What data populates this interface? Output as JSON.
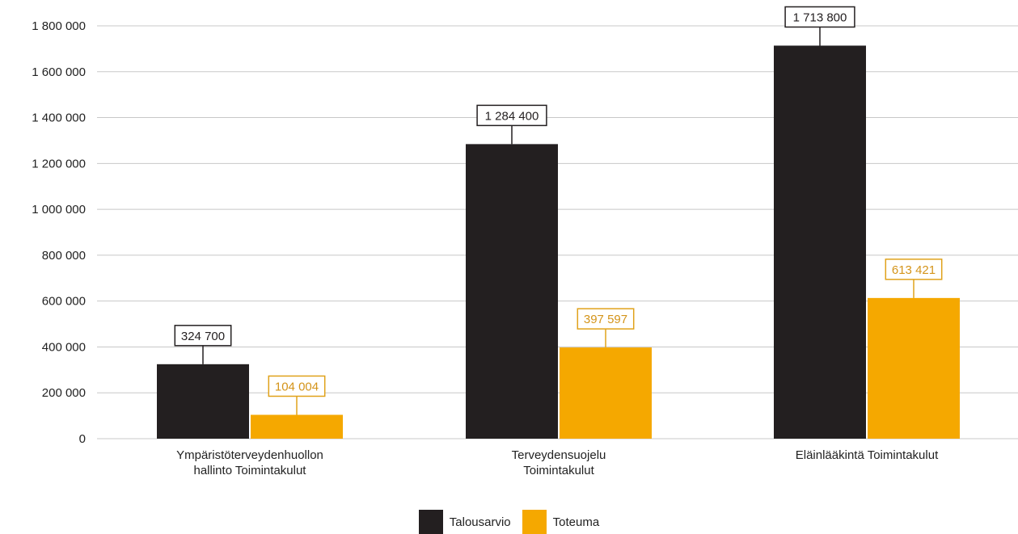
{
  "chart_data": {
    "type": "bar",
    "categories": [
      [
        "Ympäristöterveydenhuollon",
        "hallinto Toimintakulut"
      ],
      [
        "Terveydensuojelu",
        "Toimintakulut"
      ],
      [
        "Eläinlääkintä Toimintakulut"
      ]
    ],
    "series": [
      {
        "name": "Talousarvio",
        "color": "#231f20",
        "values": [
          324700,
          1284400,
          1713800
        ],
        "labels": [
          "324 700",
          "1 284 400",
          "1 713 800"
        ]
      },
      {
        "name": "Toteuma",
        "color": "#f5a800",
        "values": [
          104004,
          397597,
          613421
        ],
        "labels": [
          "104 004",
          "397 597",
          "613 421"
        ]
      }
    ],
    "ylim": [
      0,
      1800000
    ],
    "yticks": [
      0,
      200000,
      400000,
      600000,
      800000,
      1000000,
      1200000,
      1400000,
      1600000,
      1800000
    ],
    "ytick_labels": [
      "0",
      "200 000",
      "400 000",
      "600 000",
      "800 000",
      "1 000 000",
      "1 200 000",
      "1 400 000",
      "1 600 000",
      "1 800 000"
    ],
    "grid": true,
    "legend_position": "bottom"
  },
  "legend": {
    "items": [
      "Talousarvio",
      "Toteuma"
    ]
  }
}
